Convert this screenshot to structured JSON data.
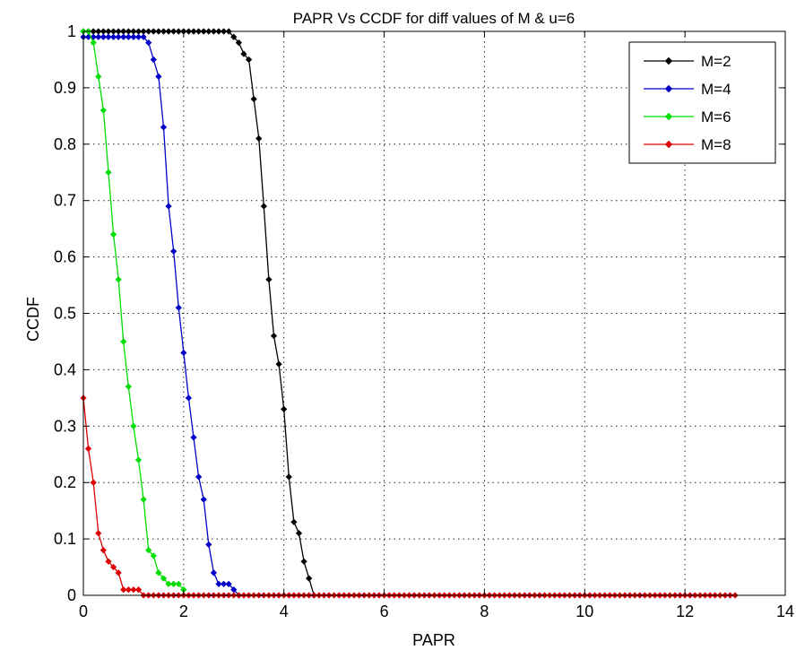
{
  "chart_data": {
    "type": "line",
    "title": "PAPR Vs CCDF for diff values of M & u=6",
    "xlabel": "PAPR",
    "ylabel": "CCDF",
    "xlim": [
      0,
      14
    ],
    "ylim": [
      0,
      1
    ],
    "xticks": [
      0,
      2,
      4,
      6,
      8,
      10,
      12,
      14
    ],
    "yticks": [
      0,
      0.1,
      0.2,
      0.3,
      0.4,
      0.5,
      0.6,
      0.7,
      0.8,
      0.9,
      1
    ],
    "xtick_labels": [
      "0",
      "2",
      "4",
      "6",
      "8",
      "10",
      "12",
      "14"
    ],
    "ytick_labels": [
      "0",
      "0.1",
      "0.2",
      "0.3",
      "0.4",
      "0.5",
      "0.6",
      "0.7",
      "0.8",
      "0.9",
      "1"
    ],
    "grid": true,
    "legend_position": "top-right",
    "marker": "diamond",
    "series": [
      {
        "name": "M=2",
        "color": "#000000",
        "x": [
          0.0,
          0.1,
          0.2,
          0.3,
          0.4,
          0.5,
          0.6,
          0.7,
          0.8,
          0.9,
          1.0,
          1.1,
          1.2,
          1.3,
          1.4,
          1.5,
          1.6,
          1.7,
          1.8,
          1.9,
          2.0,
          2.1,
          2.2,
          2.3,
          2.4,
          2.5,
          2.6,
          2.7,
          2.8,
          2.9,
          3.0,
          3.1,
          3.2,
          3.3,
          3.4,
          3.5,
          3.6,
          3.7,
          3.8,
          3.9,
          4.0,
          4.1,
          4.2,
          4.3,
          4.4,
          4.5,
          4.6
        ],
        "y": [
          1,
          1,
          1,
          1,
          1,
          1,
          1,
          1,
          1,
          1,
          1,
          1,
          1,
          1,
          1,
          1,
          1,
          1,
          1,
          1,
          1,
          1,
          1,
          1,
          1,
          1,
          1,
          1,
          1,
          1,
          0.99,
          0.98,
          0.96,
          0.95,
          0.88,
          0.81,
          0.69,
          0.56,
          0.46,
          0.41,
          0.33,
          0.21,
          0.13,
          0.11,
          0.06,
          0.03,
          0.0
        ]
      },
      {
        "name": "M=4",
        "color": "#0000c8",
        "x": [
          0.0,
          0.1,
          0.2,
          0.3,
          0.4,
          0.5,
          0.6,
          0.7,
          0.8,
          0.9,
          1.0,
          1.1,
          1.2,
          1.3,
          1.4,
          1.5,
          1.6,
          1.7,
          1.8,
          1.9,
          2.0,
          2.1,
          2.2,
          2.3,
          2.4,
          2.5,
          2.6,
          2.7,
          2.8,
          2.9,
          3.0,
          3.1
        ],
        "y": [
          0.99,
          0.99,
          0.99,
          0.99,
          0.99,
          0.99,
          0.99,
          0.99,
          0.99,
          0.99,
          0.99,
          0.99,
          0.99,
          0.98,
          0.95,
          0.92,
          0.83,
          0.69,
          0.61,
          0.51,
          0.43,
          0.35,
          0.28,
          0.21,
          0.17,
          0.09,
          0.04,
          0.02,
          0.02,
          0.02,
          0.01,
          0.0
        ]
      },
      {
        "name": "M=6",
        "color": "#00dd00",
        "x": [
          0.0,
          0.1,
          0.2,
          0.3,
          0.4,
          0.5,
          0.6,
          0.7,
          0.8,
          0.9,
          1.0,
          1.1,
          1.2,
          1.3,
          1.4,
          1.5,
          1.6,
          1.7,
          1.8,
          1.9,
          2.0
        ],
        "y": [
          1,
          1,
          0.98,
          0.92,
          0.86,
          0.75,
          0.64,
          0.56,
          0.45,
          0.37,
          0.3,
          0.24,
          0.17,
          0.08,
          0.07,
          0.04,
          0.03,
          0.02,
          0.02,
          0.02,
          0.01
        ]
      },
      {
        "name": "M=8",
        "color": "#dd0000",
        "x": [
          0.0,
          0.1,
          0.2,
          0.3,
          0.4,
          0.5,
          0.6,
          0.7,
          0.8,
          0.9,
          1.0,
          1.1,
          1.2,
          1.3,
          1.4,
          1.5,
          1.6,
          1.7,
          1.8,
          1.9,
          2.0,
          2.1,
          2.2,
          2.3,
          2.4,
          2.5,
          2.6,
          2.7,
          2.8,
          2.9,
          3.0,
          3.1,
          3.2,
          3.3,
          3.4,
          3.5,
          3.6,
          3.7,
          3.8,
          3.9,
          4.0,
          4.1,
          4.2,
          4.3,
          4.4,
          4.5,
          4.6,
          4.7,
          4.8,
          4.9,
          5.0,
          5.1,
          5.2,
          5.3,
          5.4,
          5.5,
          5.6,
          5.7,
          5.8,
          5.9,
          6.0,
          6.1,
          6.2,
          6.3,
          6.4,
          6.5,
          6.6,
          6.7,
          6.8,
          6.9,
          7.0,
          7.1,
          7.2,
          7.3,
          7.4,
          7.5,
          7.6,
          7.7,
          7.8,
          7.9,
          8.0,
          8.1,
          8.2,
          8.3,
          8.4,
          8.5,
          8.6,
          8.7,
          8.8,
          8.9,
          9.0,
          9.1,
          9.2,
          9.3,
          9.4,
          9.5,
          9.6,
          9.7,
          9.8,
          9.9,
          10.0,
          10.1,
          10.2,
          10.3,
          10.4,
          10.5,
          10.6,
          10.7,
          10.8,
          10.9,
          11.0,
          11.1,
          11.2,
          11.3,
          11.4,
          11.5,
          11.6,
          11.7,
          11.8,
          11.9,
          12.0,
          12.1,
          12.2,
          12.3,
          12.4,
          12.5,
          12.6,
          12.7,
          12.8,
          12.9,
          13.0
        ],
        "y": [
          0.35,
          0.26,
          0.2,
          0.11,
          0.08,
          0.06,
          0.05,
          0.04,
          0.01,
          0.01,
          0.01,
          0.01,
          0,
          0,
          0,
          0,
          0,
          0,
          0,
          0,
          0,
          0,
          0,
          0,
          0,
          0,
          0,
          0,
          0,
          0,
          0,
          0,
          0,
          0,
          0,
          0,
          0,
          0,
          0,
          0,
          0,
          0,
          0,
          0,
          0,
          0,
          0,
          0,
          0,
          0,
          0,
          0,
          0,
          0,
          0,
          0,
          0,
          0,
          0,
          0,
          0,
          0,
          0,
          0,
          0,
          0,
          0,
          0,
          0,
          0,
          0,
          0,
          0,
          0,
          0,
          0,
          0,
          0,
          0,
          0,
          0,
          0,
          0,
          0,
          0,
          0,
          0,
          0,
          0,
          0,
          0,
          0,
          0,
          0,
          0,
          0,
          0,
          0,
          0,
          0,
          0,
          0,
          0,
          0,
          0,
          0,
          0,
          0,
          0,
          0,
          0,
          0,
          0,
          0,
          0,
          0,
          0,
          0,
          0,
          0,
          0,
          0,
          0,
          0,
          0,
          0,
          0,
          0,
          0,
          0,
          0
        ]
      }
    ]
  }
}
